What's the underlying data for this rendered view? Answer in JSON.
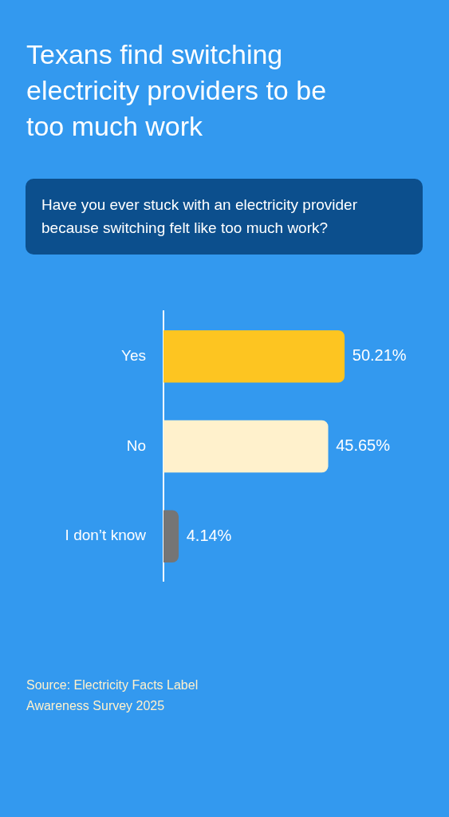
{
  "chart_data": {
    "type": "bar",
    "orientation": "horizontal",
    "title": "Texans find switching electricity providers to be too much work",
    "subtitle": "Have you ever stuck with an electricity provider because switching felt like too much work?",
    "categories": [
      "Yes",
      "No",
      "I don’t know"
    ],
    "values": [
      50.21,
      45.65,
      4.14
    ],
    "colors": [
      "#fdc521",
      "#fff1cc",
      "#757575"
    ],
    "value_labels": [
      "50.21%",
      "45.65%",
      "4.14%"
    ],
    "annotations": [
      "Source: Electricity Facts Label Awareness Survey 2025"
    ]
  }
}
